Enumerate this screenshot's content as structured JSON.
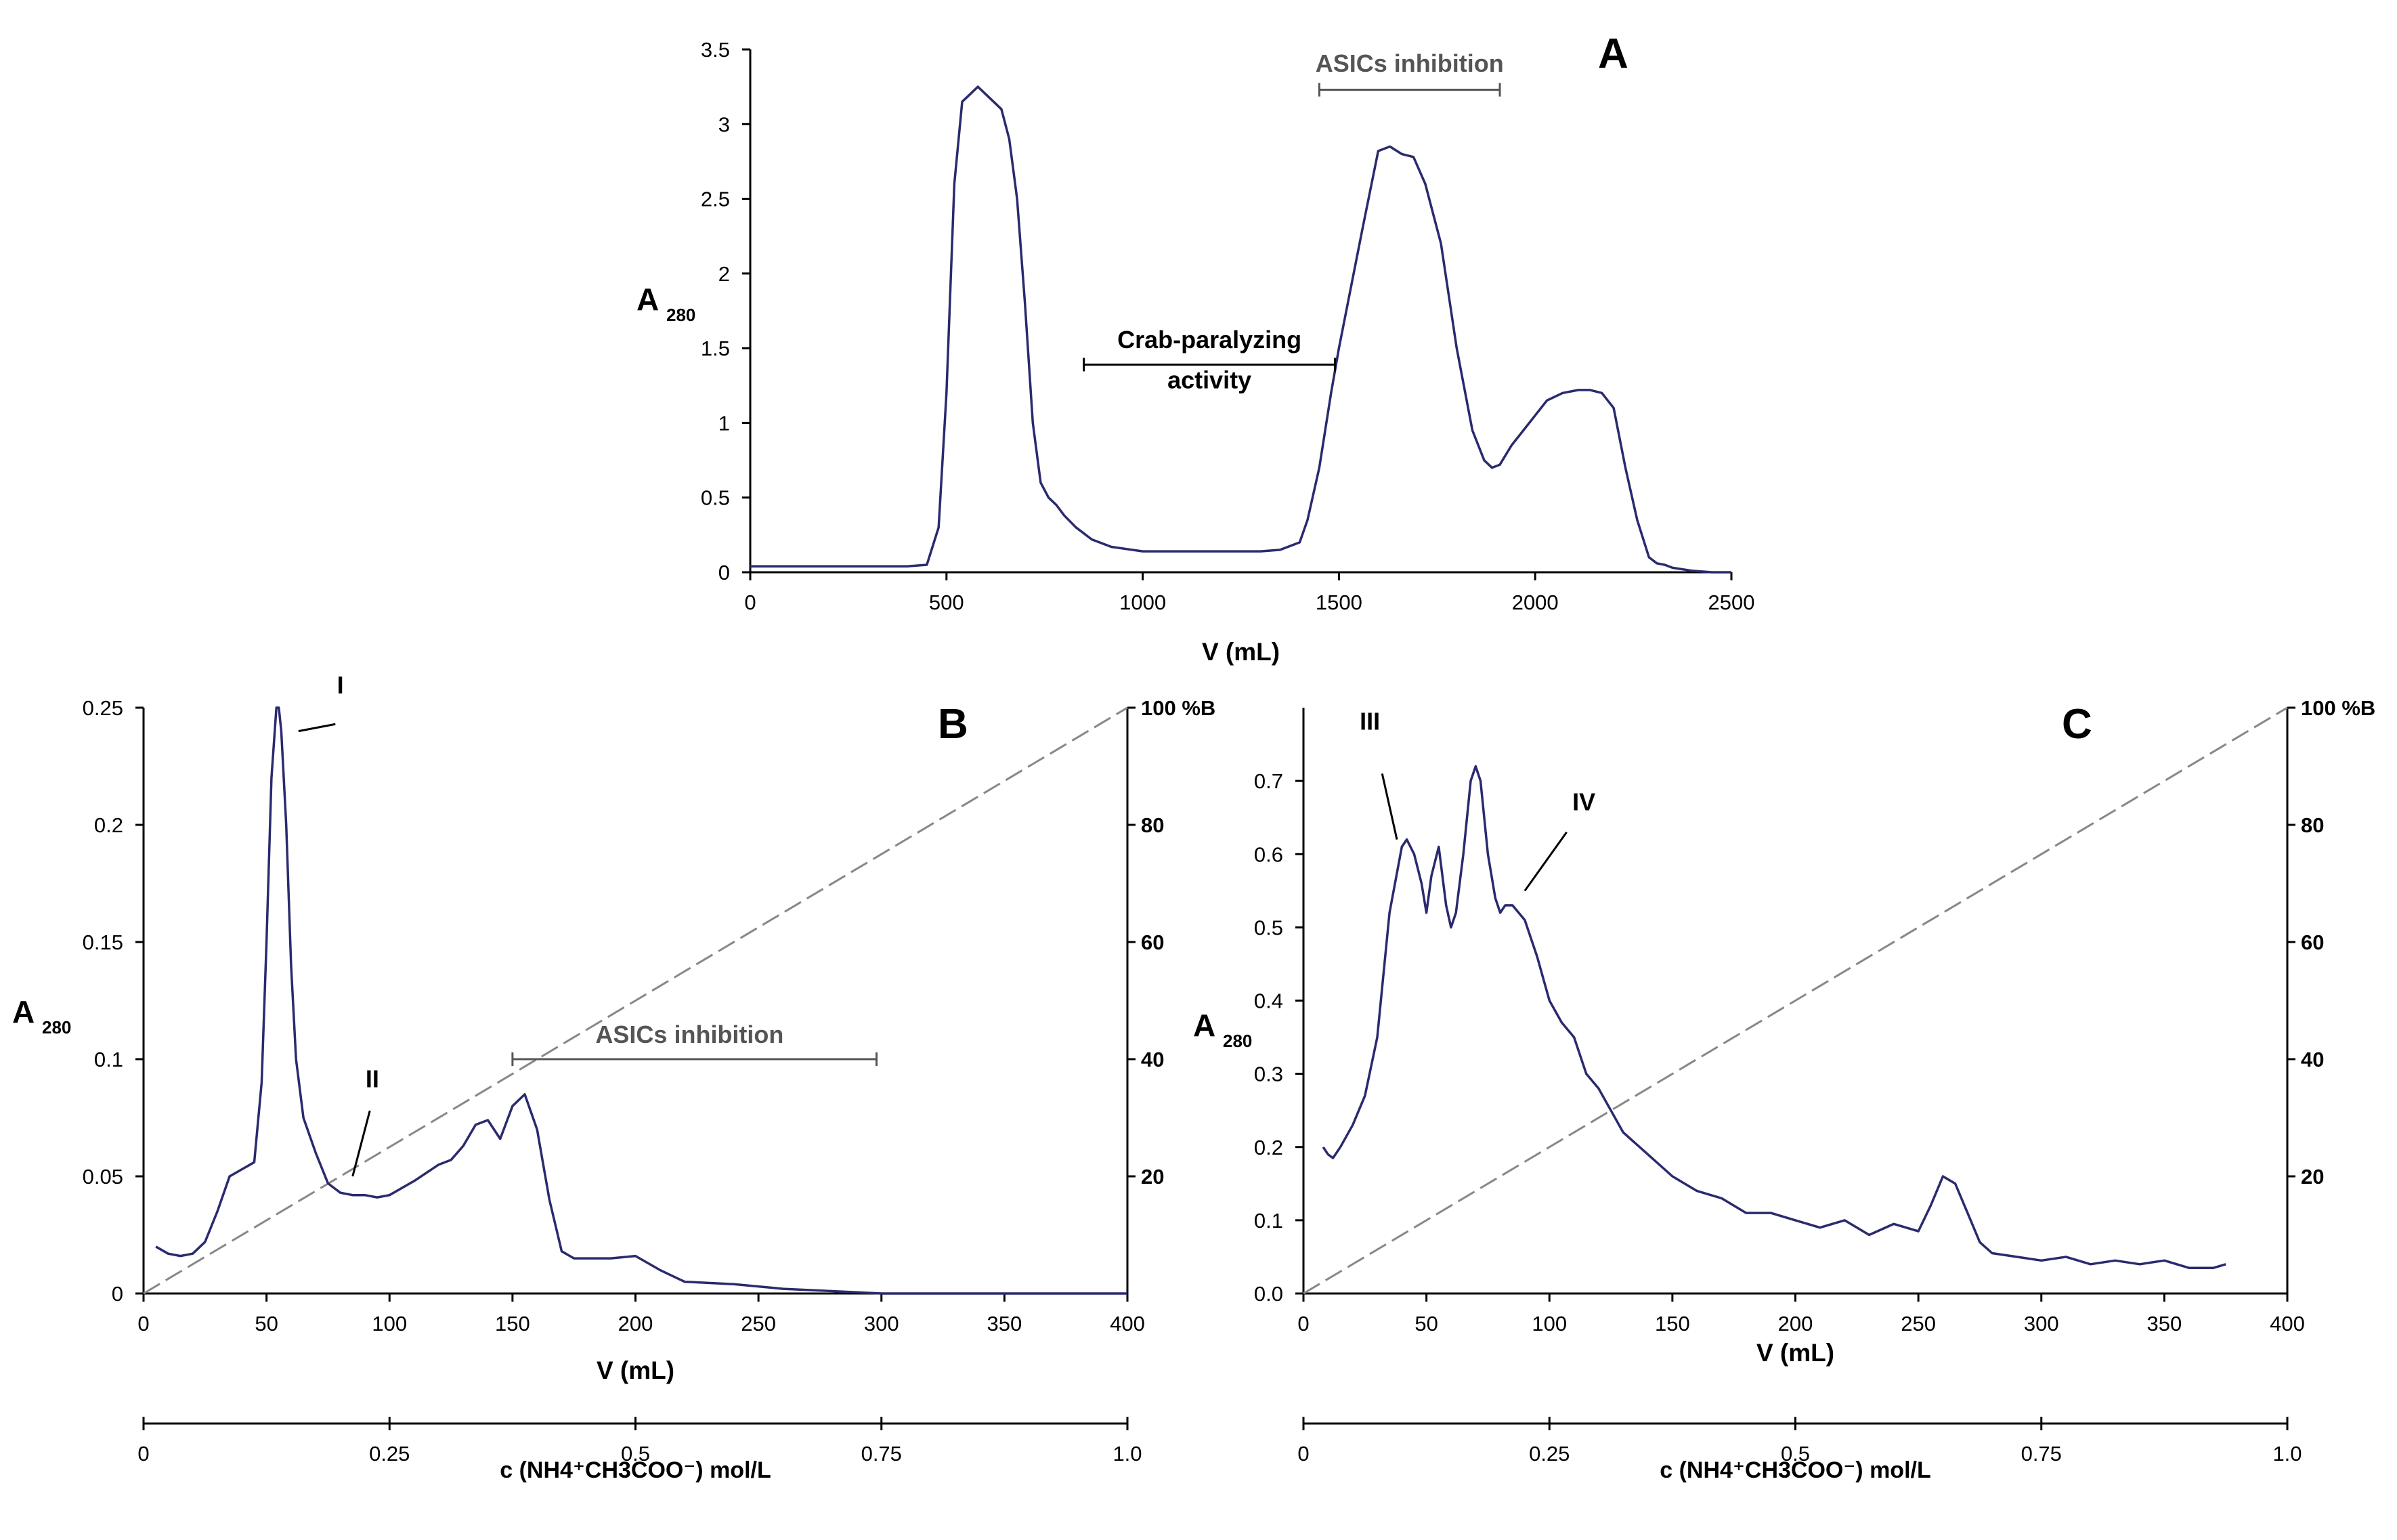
{
  "figure_colors": {
    "trace": "#2a2a6e",
    "axis": "#000000",
    "gradient": "#888888",
    "annotation_grey": "#555555"
  },
  "chart_data": [
    {
      "panel": "A",
      "type": "line",
      "letter": "A",
      "xlabel": "V (mL)",
      "ylabel_main": "A",
      "ylabel_sub": "280",
      "xlim": [
        0,
        2500
      ],
      "ylim": [
        0,
        3.5
      ],
      "xticks": [
        0,
        500,
        1000,
        1500,
        2000,
        2500
      ],
      "yticks": [
        0,
        0.5,
        1,
        1.5,
        2,
        2.5,
        3,
        3.5
      ],
      "xtick_labels": [
        "0",
        "500",
        "1000",
        "1500",
        "2000",
        "2500"
      ],
      "ytick_labels": [
        "0",
        "0.5",
        "1",
        "1.5",
        "2",
        "2.5",
        "3",
        "3.5"
      ],
      "series": [
        {
          "name": "A280",
          "x": [
            0,
            200,
            400,
            450,
            480,
            500,
            520,
            540,
            560,
            580,
            600,
            620,
            640,
            660,
            680,
            700,
            720,
            740,
            760,
            780,
            800,
            830,
            870,
            920,
            1000,
            1100,
            1200,
            1300,
            1350,
            1400,
            1420,
            1450,
            1480,
            1500,
            1530,
            1560,
            1600,
            1630,
            1660,
            1690,
            1720,
            1760,
            1800,
            1840,
            1870,
            1890,
            1910,
            1940,
            1970,
            2000,
            2030,
            2070,
            2110,
            2140,
            2170,
            2200,
            2230,
            2260,
            2290,
            2310,
            2330,
            2350,
            2400,
            2450,
            2500
          ],
          "y": [
            0.04,
            0.04,
            0.04,
            0.05,
            0.3,
            1.2,
            2.6,
            3.15,
            3.2,
            3.25,
            3.2,
            3.15,
            3.1,
            2.9,
            2.5,
            1.8,
            1.0,
            0.6,
            0.5,
            0.45,
            0.38,
            0.3,
            0.22,
            0.17,
            0.14,
            0.14,
            0.14,
            0.14,
            0.15,
            0.2,
            0.35,
            0.7,
            1.2,
            1.5,
            1.9,
            2.3,
            2.82,
            2.85,
            2.8,
            2.78,
            2.6,
            2.2,
            1.5,
            0.95,
            0.75,
            0.7,
            0.72,
            0.85,
            0.95,
            1.05,
            1.15,
            1.2,
            1.22,
            1.22,
            1.2,
            1.1,
            0.7,
            0.35,
            0.1,
            0.06,
            0.05,
            0.03,
            0.01,
            0.0,
            0.0
          ]
        }
      ],
      "annotations": [
        {
          "text": "ASICs inhibition",
          "style": "grey",
          "x_from": 1450,
          "x_to": 1910,
          "bar_y": 3.23,
          "text_y": 3.35,
          "text_x": 1680
        },
        {
          "text": "Crab-paralyzing",
          "text2": "activity",
          "style": "bold",
          "x_from": 850,
          "x_to": 1490,
          "bar_y": 1.39,
          "text_y": 1.5,
          "text2_y": 1.23,
          "text_x": 1170
        }
      ]
    },
    {
      "panel": "B",
      "type": "line",
      "letter": "B",
      "xlabel": "V (mL)",
      "ylabel_main": "A",
      "ylabel_sub": "280",
      "xlim": [
        0,
        400
      ],
      "ylim": [
        0,
        0.25
      ],
      "y2lim": [
        0,
        100
      ],
      "xticks": [
        0,
        50,
        100,
        150,
        200,
        250,
        300,
        350,
        400
      ],
      "yticks": [
        0,
        0.05,
        0.1,
        0.15,
        0.2,
        0.25
      ],
      "y2ticks": [
        20,
        40,
        60,
        80,
        100
      ],
      "xtick_labels": [
        "0",
        "50",
        "100",
        "150",
        "200",
        "250",
        "300",
        "350",
        "400"
      ],
      "ytick_labels": [
        "0",
        "0.05",
        "0.1",
        "0.15",
        "0.2",
        "0.25"
      ],
      "y2tick_labels": [
        "20",
        "40",
        "60",
        "80",
        "100 %B"
      ],
      "conc_axis": {
        "label": "c (NH4⁺CH3COO⁻) mol/L",
        "ticks": [
          0,
          0.25,
          0.5,
          0.75,
          1.0
        ],
        "tick_labels": [
          "0",
          "0.25",
          "0.5",
          "0.75",
          "1.0"
        ]
      },
      "gradient": {
        "x": [
          0,
          400
        ],
        "y_pct": [
          0,
          100
        ]
      },
      "series": [
        {
          "name": "A280",
          "x": [
            5,
            10,
            15,
            20,
            25,
            30,
            35,
            40,
            45,
            48,
            50,
            52,
            54,
            55,
            56,
            58,
            60,
            62,
            65,
            70,
            75,
            80,
            85,
            90,
            95,
            100,
            110,
            120,
            125,
            130,
            135,
            140,
            145,
            150,
            155,
            160,
            165,
            170,
            175,
            180,
            190,
            200,
            210,
            220,
            240,
            260,
            280,
            300,
            320,
            340,
            360,
            380,
            400
          ],
          "y": [
            0.02,
            0.017,
            0.016,
            0.017,
            0.022,
            0.035,
            0.05,
            0.053,
            0.056,
            0.09,
            0.15,
            0.22,
            0.25,
            0.25,
            0.24,
            0.2,
            0.14,
            0.1,
            0.075,
            0.06,
            0.047,
            0.043,
            0.042,
            0.042,
            0.041,
            0.042,
            0.048,
            0.055,
            0.057,
            0.063,
            0.072,
            0.074,
            0.066,
            0.08,
            0.085,
            0.07,
            0.04,
            0.018,
            0.015,
            0.015,
            0.015,
            0.016,
            0.01,
            0.005,
            0.004,
            0.002,
            0.001,
            0.0,
            0.0,
            0.0,
            0.0,
            0.0,
            0.0
          ]
        }
      ],
      "annotations": [
        {
          "text": "ASICs inhibition",
          "style": "grey",
          "x_from": 150,
          "x_to": 298,
          "bar_y": 0.1,
          "text_y": 0.107,
          "text_x": 222
        },
        {
          "text": "I",
          "style": "bold",
          "text_x": 80,
          "text_y": 0.256
        },
        {
          "text": "II",
          "style": "bold",
          "text_x": 93,
          "text_y": 0.088
        }
      ]
    },
    {
      "panel": "C",
      "type": "line",
      "letter": "C",
      "xlabel": "V (mL)",
      "ylabel_main": "A",
      "ylabel_sub": "280",
      "xlim": [
        0,
        400
      ],
      "ylim": [
        0,
        0.8
      ],
      "y2lim": [
        0,
        100
      ],
      "xticks": [
        0,
        50,
        100,
        150,
        200,
        250,
        300,
        350,
        400
      ],
      "yticks": [
        0,
        0.1,
        0.2,
        0.3,
        0.4,
        0.5,
        0.6,
        0.7
      ],
      "y2ticks": [
        20,
        40,
        60,
        80,
        100
      ],
      "xtick_labels": [
        "0",
        "50",
        "100",
        "150",
        "200",
        "250",
        "300",
        "350",
        "400"
      ],
      "ytick_labels": [
        "0.0",
        "0.1",
        "0.2",
        "0.3",
        "0.4",
        "0.5",
        "0.6",
        "0.7"
      ],
      "y2tick_labels": [
        "20",
        "40",
        "60",
        "80",
        "100 %B"
      ],
      "conc_axis": {
        "label": "c (NH4⁺CH3COO⁻) mol/L",
        "ticks": [
          0,
          0.25,
          0.5,
          0.75,
          1.0
        ],
        "tick_labels": [
          "0",
          "0.25",
          "0.5",
          "0.75",
          "1.0"
        ]
      },
      "gradient": {
        "x": [
          0,
          400
        ],
        "y_pct": [
          0,
          100
        ]
      },
      "series": [
        {
          "name": "A280",
          "x": [
            8,
            10,
            12,
            15,
            20,
            25,
            30,
            35,
            40,
            42,
            45,
            48,
            50,
            52,
            55,
            58,
            60,
            62,
            65,
            68,
            70,
            72,
            75,
            78,
            80,
            82,
            85,
            90,
            95,
            100,
            105,
            110,
            115,
            120,
            130,
            140,
            150,
            160,
            170,
            180,
            190,
            200,
            210,
            220,
            230,
            240,
            250,
            255,
            260,
            265,
            270,
            275,
            280,
            290,
            300,
            310,
            320,
            330,
            340,
            350,
            360,
            370,
            375
          ],
          "y": [
            0.2,
            0.19,
            0.185,
            0.2,
            0.23,
            0.27,
            0.35,
            0.52,
            0.61,
            0.62,
            0.6,
            0.56,
            0.52,
            0.57,
            0.61,
            0.53,
            0.5,
            0.52,
            0.6,
            0.7,
            0.72,
            0.7,
            0.6,
            0.54,
            0.52,
            0.53,
            0.53,
            0.51,
            0.46,
            0.4,
            0.37,
            0.35,
            0.3,
            0.28,
            0.22,
            0.19,
            0.16,
            0.14,
            0.13,
            0.11,
            0.11,
            0.1,
            0.09,
            0.1,
            0.08,
            0.095,
            0.085,
            0.12,
            0.16,
            0.15,
            0.11,
            0.07,
            0.055,
            0.05,
            0.045,
            0.05,
            0.04,
            0.045,
            0.04,
            0.045,
            0.035,
            0.035,
            0.04
          ]
        }
      ],
      "annotations": [
        {
          "text": "III",
          "style": "bold",
          "text_x": 27,
          "text_y": 0.77
        },
        {
          "text": "IV",
          "style": "bold",
          "text_x": 114,
          "text_y": 0.66
        }
      ]
    }
  ]
}
